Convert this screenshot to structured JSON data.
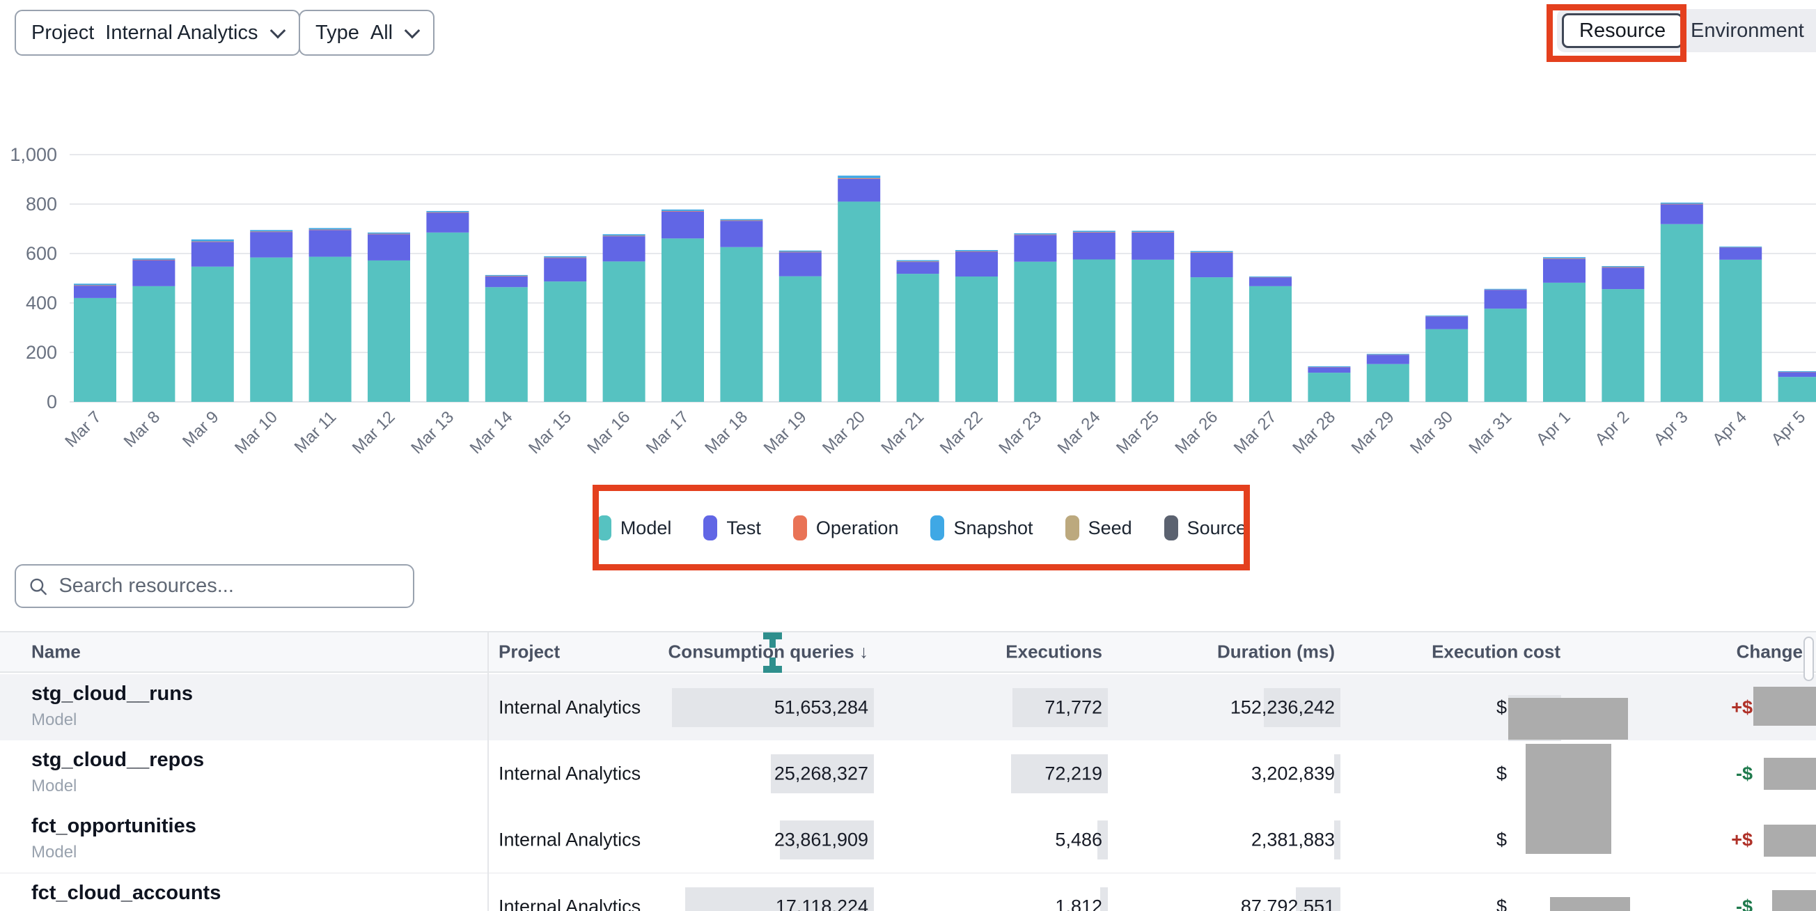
{
  "toolbar": {
    "project_filter": {
      "label": "Project",
      "value": "Internal Analytics"
    },
    "type_filter": {
      "label": "Type",
      "value": "All"
    },
    "view_toggle": {
      "options": [
        "Resource",
        "Environment"
      ],
      "selected": "Resource"
    }
  },
  "annotation_color": "#E4401E",
  "chart_data": {
    "type": "bar",
    "stacked": true,
    "title": "",
    "xlabel": "",
    "ylabel": "",
    "ylim": [
      0,
      1000
    ],
    "yticks": [
      "0",
      "200",
      "400",
      "600",
      "800",
      "1,000"
    ],
    "grid": true,
    "legend_position": "bottom",
    "categories": [
      "Mar 7",
      "Mar 8",
      "Mar 9",
      "Mar 10",
      "Mar 11",
      "Mar 12",
      "Mar 13",
      "Mar 14",
      "Mar 15",
      "Mar 16",
      "Mar 17",
      "Mar 18",
      "Mar 19",
      "Mar 20",
      "Mar 21",
      "Mar 22",
      "Mar 23",
      "Mar 24",
      "Mar 25",
      "Mar 26",
      "Mar 27",
      "Mar 28",
      "Mar 29",
      "Mar 30",
      "Mar 31",
      "Apr 1",
      "Apr 2",
      "Apr 3",
      "Apr 4",
      "Apr 5"
    ],
    "series": [
      {
        "name": "Model",
        "color": "#56C2C1",
        "values": [
          420,
          468,
          547,
          584,
          587,
          572,
          685,
          464,
          487,
          568,
          661,
          626,
          508,
          810,
          518,
          507,
          567,
          576,
          575,
          504,
          468,
          118,
          153,
          294,
          377,
          482,
          456,
          719,
          575,
          101
        ]
      },
      {
        "name": "Test",
        "color": "#6166E5",
        "values": [
          50,
          105,
          100,
          103,
          108,
          106,
          80,
          43,
          95,
          102,
          109,
          106,
          97,
          92,
          48,
          100,
          108,
          109,
          110,
          99,
          35,
          22,
          37,
          51,
          76,
          96,
          87,
          80,
          49,
          19
        ]
      },
      {
        "name": "Operation",
        "color": "#E97356",
        "values": [
          2,
          2,
          2,
          2,
          2,
          2,
          2,
          2,
          2,
          2,
          2,
          2,
          2,
          3,
          2,
          2,
          2,
          2,
          2,
          2,
          1,
          1,
          1,
          1,
          1,
          2,
          2,
          2,
          1,
          1
        ]
      },
      {
        "name": "Snapshot",
        "color": "#3FA8E5",
        "values": [
          6,
          5,
          8,
          6,
          6,
          5,
          5,
          4,
          5,
          6,
          6,
          5,
          5,
          10,
          5,
          5,
          5,
          5,
          5,
          5,
          3,
          3,
          3,
          3,
          3,
          5,
          4,
          5,
          3,
          3
        ]
      },
      {
        "name": "Seed",
        "color": "#BCA97E",
        "values": [
          0,
          0,
          0,
          0,
          0,
          0,
          0,
          0,
          0,
          0,
          0,
          0,
          0,
          0,
          0,
          0,
          0,
          0,
          0,
          0,
          0,
          0,
          0,
          0,
          0,
          0,
          0,
          0,
          0,
          0
        ]
      },
      {
        "name": "Source",
        "color": "#5B6270",
        "values": [
          0,
          0,
          0,
          0,
          0,
          0,
          0,
          0,
          0,
          0,
          0,
          0,
          0,
          0,
          0,
          0,
          0,
          0,
          0,
          0,
          0,
          0,
          0,
          0,
          0,
          0,
          0,
          0,
          0,
          0
        ]
      }
    ]
  },
  "legend": {
    "items": [
      {
        "label": "Model",
        "color": "#56C2C1"
      },
      {
        "label": "Test",
        "color": "#6166E5"
      },
      {
        "label": "Operation",
        "color": "#E97356"
      },
      {
        "label": "Snapshot",
        "color": "#3FA8E5"
      },
      {
        "label": "Seed",
        "color": "#BCA97E"
      },
      {
        "label": "Source",
        "color": "#5B6270"
      }
    ]
  },
  "search": {
    "placeholder": "Search resources..."
  },
  "table": {
    "sort_arrow": "↓",
    "columns": [
      {
        "label": "Name",
        "align": "left"
      },
      {
        "label": "Project",
        "align": "left"
      },
      {
        "label": "Consumption queries",
        "align": "right",
        "sorted": "desc"
      },
      {
        "label": "Executions",
        "align": "right"
      },
      {
        "label": "Duration (ms)",
        "align": "right"
      },
      {
        "label": "Execution cost",
        "align": "right"
      },
      {
        "label": "Change",
        "align": "right"
      }
    ],
    "rows": [
      {
        "name": "stg_cloud__runs",
        "type": "Model",
        "project": "Internal Analytics",
        "consumption_queries": "51,653,284",
        "executions": "71,772",
        "duration_ms": "152,236,242",
        "execution_cost": "$",
        "change_sign": "+$",
        "change_dir": "up",
        "bars": {
          "cq": 290,
          "ex": 137,
          "dur": 110
        }
      },
      {
        "name": "stg_cloud__repos",
        "type": "Model",
        "project": "Internal Analytics",
        "consumption_queries": "25,268,327",
        "executions": "72,219",
        "duration_ms": "3,202,839",
        "execution_cost": "$",
        "change_sign": "-$",
        "change_dir": "down",
        "bars": {
          "cq": 148,
          "ex": 139,
          "dur": 9
        }
      },
      {
        "name": "fct_opportunities",
        "type": "Model",
        "project": "Internal Analytics",
        "consumption_queries": "23,861,909",
        "executions": "5,486",
        "duration_ms": "2,381,883",
        "execution_cost": "$",
        "change_sign": "+$",
        "change_dir": "up",
        "bars": {
          "cq": 135,
          "ex": 15,
          "dur": 9
        }
      },
      {
        "name": "fct_cloud_accounts",
        "type": "",
        "project": "Internal Analytics",
        "consumption_queries": "17,118,224",
        "executions": "1,812",
        "duration_ms": "87,792,551",
        "execution_cost": "$",
        "change_sign": "-$",
        "change_dir": "down",
        "bars": {
          "cq": 271,
          "ex": 11,
          "dur": 64
        }
      }
    ]
  }
}
